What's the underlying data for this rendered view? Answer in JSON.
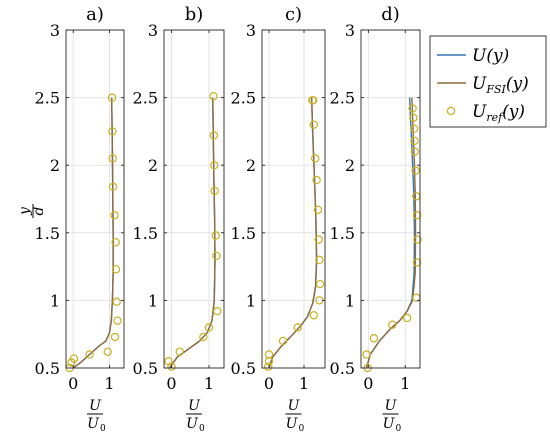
{
  "chart_data": {
    "type": "line",
    "panels": [
      {
        "title": "a)",
        "xlim": [
          -0.2,
          1.4
        ],
        "ylim": [
          0.5,
          3
        ],
        "xticks": [
          0,
          1
        ],
        "yticks": [
          0.5,
          1,
          1.5,
          2,
          2.5,
          3
        ],
        "U": {
          "x": [
            0.0,
            0.2,
            0.45,
            0.7,
            0.9,
            1.0,
            1.05,
            1.08,
            1.1,
            1.1,
            1.09,
            1.08,
            1.07,
            1.06
          ],
          "y": [
            0.5,
            0.54,
            0.6,
            0.66,
            0.7,
            0.76,
            0.85,
            1.0,
            1.2,
            1.5,
            1.8,
            2.1,
            2.3,
            2.5
          ]
        },
        "U_FSI": {
          "x": [
            0.0,
            0.2,
            0.45,
            0.7,
            0.9,
            1.0,
            1.05,
            1.08,
            1.1,
            1.1,
            1.09,
            1.08,
            1.07,
            1.06
          ],
          "y": [
            0.5,
            0.54,
            0.6,
            0.66,
            0.7,
            0.76,
            0.85,
            1.0,
            1.2,
            1.5,
            1.8,
            2.1,
            2.3,
            2.5
          ]
        },
        "U_ref": {
          "x": [
            -0.1,
            -0.05,
            0.02,
            0.45,
            0.95,
            1.15,
            1.22,
            1.2,
            1.18,
            1.17,
            1.14,
            1.1,
            1.09,
            1.08,
            1.07
          ],
          "y": [
            0.5,
            0.54,
            0.57,
            0.6,
            0.62,
            0.73,
            0.85,
            0.99,
            1.23,
            1.43,
            1.63,
            1.84,
            2.05,
            2.25,
            2.5
          ]
        }
      },
      {
        "title": "b)",
        "xlim": [
          -0.2,
          1.4
        ],
        "ylim": [
          0.5,
          3
        ],
        "xticks": [
          0,
          1
        ],
        "yticks": [
          0.5,
          1,
          1.5,
          2,
          2.5,
          3
        ],
        "U": {
          "x": [
            -0.05,
            0.15,
            0.45,
            0.75,
            0.95,
            1.08,
            1.14,
            1.16,
            1.15,
            1.13,
            1.12,
            1.11,
            1.1
          ],
          "y": [
            0.5,
            0.58,
            0.64,
            0.7,
            0.76,
            0.85,
            1.0,
            1.3,
            1.6,
            1.9,
            2.1,
            2.3,
            2.5
          ]
        },
        "U_FSI": {
          "x": [
            -0.05,
            0.15,
            0.45,
            0.75,
            0.95,
            1.08,
            1.14,
            1.16,
            1.15,
            1.13,
            1.12,
            1.11,
            1.1
          ],
          "y": [
            0.5,
            0.58,
            0.64,
            0.7,
            0.76,
            0.85,
            1.0,
            1.3,
            1.6,
            1.9,
            2.1,
            2.3,
            2.5
          ]
        },
        "U_ref": {
          "x": [
            -0.08,
            0.0,
            0.22,
            0.85,
            1.0,
            1.22,
            1.2,
            1.18,
            1.15,
            1.14,
            1.13,
            1.12
          ],
          "y": [
            0.55,
            0.51,
            0.62,
            0.73,
            0.8,
            0.92,
            1.33,
            1.48,
            1.81,
            2.0,
            2.22,
            2.51
          ]
        }
      },
      {
        "title": "c)",
        "xlim": [
          -0.2,
          1.6
        ],
        "ylim": [
          0.5,
          3
        ],
        "xticks": [
          0,
          1
        ],
        "yticks": [
          0.5,
          1,
          1.5,
          2,
          2.5,
          3
        ],
        "U": {
          "x": [
            0.0,
            0.1,
            0.35,
            0.65,
            0.9,
            1.1,
            1.25,
            1.33,
            1.36,
            1.34,
            1.3,
            1.27,
            1.24,
            1.22
          ],
          "y": [
            0.5,
            0.58,
            0.66,
            0.74,
            0.81,
            0.88,
            0.98,
            1.1,
            1.3,
            1.6,
            1.9,
            2.1,
            2.3,
            2.5
          ]
        },
        "U_FSI": {
          "x": [
            0.0,
            0.1,
            0.35,
            0.65,
            0.9,
            1.1,
            1.25,
            1.33,
            1.36,
            1.34,
            1.3,
            1.27,
            1.24,
            1.22
          ],
          "y": [
            0.5,
            0.58,
            0.66,
            0.74,
            0.81,
            0.88,
            0.98,
            1.1,
            1.3,
            1.6,
            1.9,
            2.1,
            2.3,
            2.5
          ]
        },
        "U_ref": {
          "x": [
            -0.02,
            0.0,
            0.0,
            0.4,
            0.82,
            1.28,
            1.44,
            1.46,
            1.44,
            1.42,
            1.4,
            1.36,
            1.32,
            1.28,
            1.26,
            1.24
          ],
          "y": [
            0.51,
            0.55,
            0.6,
            0.7,
            0.8,
            0.89,
            1.0,
            1.12,
            1.3,
            1.45,
            1.67,
            1.89,
            2.05,
            2.3,
            2.48,
            2.48
          ]
        }
      },
      {
        "title": "d)",
        "xlim": [
          -0.2,
          1.4
        ],
        "ylim": [
          0.5,
          3
        ],
        "xticks": [
          0,
          1
        ],
        "yticks": [
          0.5,
          1,
          1.5,
          2,
          2.5,
          3
        ],
        "U": {
          "x": [
            -0.05,
            0.05,
            0.3,
            0.6,
            0.85,
            1.05,
            1.18,
            1.24,
            1.25,
            1.23,
            1.2,
            1.17,
            1.14,
            1.12
          ],
          "y": [
            0.5,
            0.6,
            0.7,
            0.79,
            0.85,
            0.92,
            1.0,
            1.2,
            1.5,
            1.8,
            2.0,
            2.2,
            2.35,
            2.5
          ]
        },
        "U_FSI": {
          "x": [
            -0.05,
            0.05,
            0.3,
            0.6,
            0.85,
            1.05,
            1.2,
            1.27,
            1.28,
            1.27,
            1.25,
            1.22,
            1.2,
            1.18
          ],
          "y": [
            0.5,
            0.6,
            0.7,
            0.79,
            0.85,
            0.92,
            1.0,
            1.2,
            1.5,
            1.8,
            2.0,
            2.2,
            2.35,
            2.5
          ]
        },
        "U_ref": {
          "x": [
            -0.02,
            -0.05,
            0.15,
            0.65,
            1.05,
            1.3,
            1.32,
            1.33,
            1.32,
            1.3,
            1.28,
            1.26,
            1.25,
            1.24,
            1.22,
            1.2
          ],
          "y": [
            0.5,
            0.6,
            0.72,
            0.82,
            0.87,
            1.02,
            1.28,
            1.45,
            1.63,
            1.77,
            1.96,
            2.1,
            2.18,
            2.27,
            2.35,
            2.42
          ]
        }
      }
    ],
    "legend": {
      "placement": "top-right",
      "entries": [
        {
          "key": "U",
          "label": "U(y)",
          "main": "U(y)",
          "sub": "",
          "tail": "",
          "marker": "line",
          "color": "#3477b6"
        },
        {
          "key": "U_FSI",
          "label": "U_FSI(y)",
          "main": "U",
          "sub": "FSI",
          "tail": "(y)",
          "marker": "line",
          "color": "#8e6a3e"
        },
        {
          "key": "U_ref",
          "label": "U_ref(y)",
          "main": "U",
          "sub": "ref",
          "tail": "(y)",
          "marker": "circle",
          "color": "#c9b020"
        }
      ]
    },
    "ylabel": {
      "num": "y",
      "den": "d"
    },
    "xlabel": {
      "num": "U",
      "den": "U",
      "den_sub": "0"
    }
  }
}
